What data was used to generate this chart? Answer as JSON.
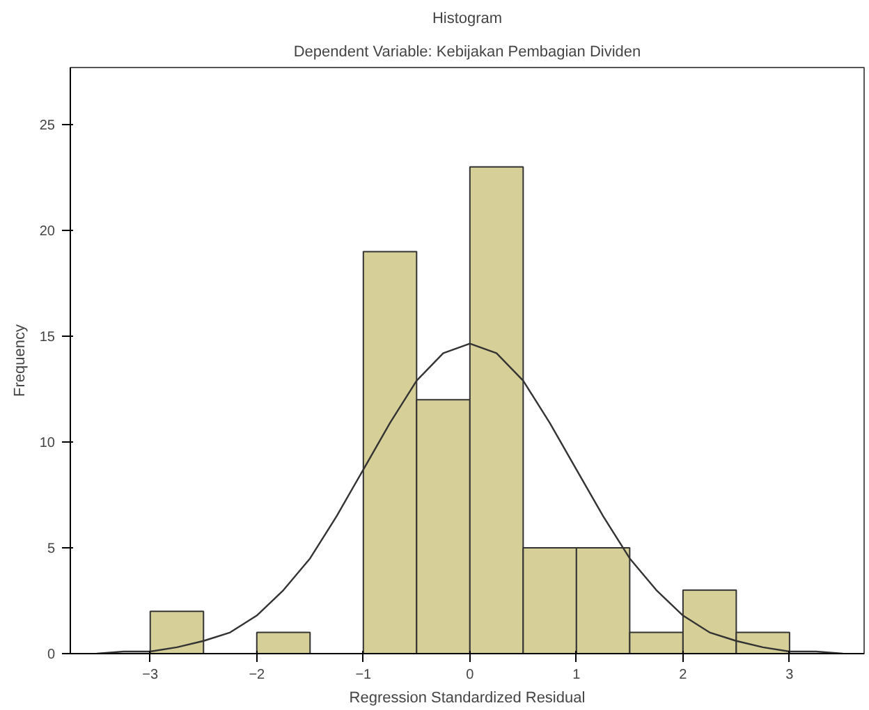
{
  "chart_data": {
    "type": "histogram",
    "title": "Histogram",
    "subtitle": "Dependent Variable: Kebijakan Pembagian Dividen",
    "xlabel": "Regression Standardized Residual",
    "ylabel": "Frequency",
    "bins": [
      -3,
      -2.5,
      -2,
      -1.5,
      -1,
      -0.5,
      0,
      0.5,
      1,
      1.5,
      2,
      2.5,
      3
    ],
    "values": [
      2,
      0,
      1,
      0,
      19,
      12,
      23,
      5,
      5,
      1,
      3,
      1
    ],
    "color": "#d6cf98",
    "series": [
      {
        "type": "line",
        "color": "#333333",
        "x": [
          -3.5,
          -3.25,
          -3,
          -2.75,
          -2.5,
          -2.25,
          -2,
          -1.75,
          -1.5,
          -1.25,
          -1,
          -0.75,
          -0.5,
          -0.25,
          0,
          0.25,
          0.5,
          0.75,
          1,
          1.25,
          1.5,
          1.75,
          2,
          2.25,
          2.5,
          2.75,
          3,
          3.25,
          3.5
        ],
        "values": [
          0,
          0.1,
          0.1,
          0.3,
          0.6,
          1.0,
          1.8,
          3.0,
          4.5,
          6.5,
          8.7,
          10.9,
          12.9,
          14.2,
          14.65,
          14.2,
          12.9,
          10.9,
          8.7,
          6.5,
          4.5,
          3.0,
          1.8,
          1.0,
          0.6,
          0.3,
          0.1,
          0.1,
          0
        ]
      }
    ],
    "xlim": [
      -3.75,
      3.7
    ],
    "ylim": [
      0,
      27.7
    ],
    "xticks": [
      -3,
      -2,
      -1,
      0,
      1,
      2,
      3
    ],
    "yticks": [
      0,
      5,
      10,
      15,
      20,
      25
    ],
    "grid": false,
    "line_style": "solid",
    "marker": "none"
  }
}
